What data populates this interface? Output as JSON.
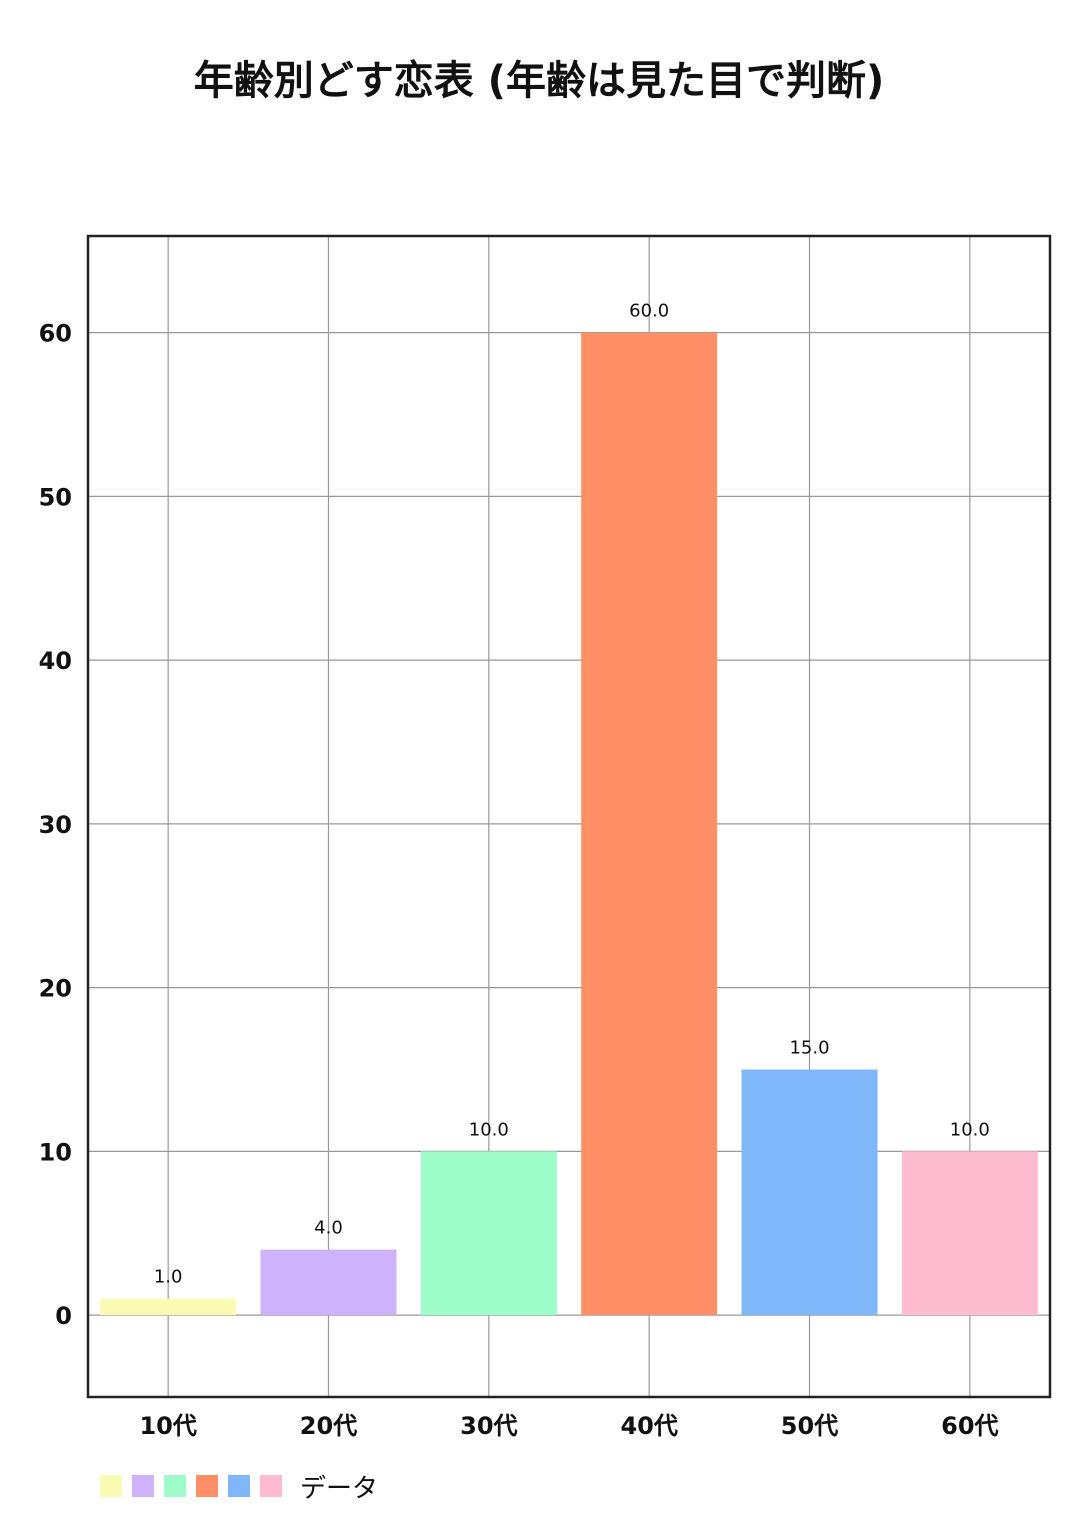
{
  "chart_data": {
    "type": "bar",
    "title": "年齢別どす恋表 (年齢は見た目で判断)",
    "categories": [
      "10代",
      "20代",
      "30代",
      "40代",
      "50代",
      "60代"
    ],
    "series": [
      {
        "name": "データ",
        "values": [
          1.0,
          4.0,
          10.0,
          60.0,
          15.0,
          10.0
        ],
        "data_labels": [
          "1.0",
          "4.0",
          "10.0",
          "60.0",
          "15.0",
          "10.0"
        ]
      }
    ],
    "colors": [
      "#f9fbb2",
      "#ceb3fa",
      "#9dfcc7",
      "#fe8f66",
      "#80b7fb",
      "#fdbbcf"
    ],
    "ylim": [
      -5,
      65.9
    ],
    "yticks": [
      0,
      10,
      20,
      30,
      40,
      50,
      60
    ],
    "ytick_labels": [
      "0",
      "10",
      "20",
      "30",
      "40",
      "50",
      "60"
    ],
    "xlabel": "",
    "ylabel": "",
    "grid": true,
    "legend": {
      "position": "bottom-left",
      "label": "データ"
    }
  }
}
